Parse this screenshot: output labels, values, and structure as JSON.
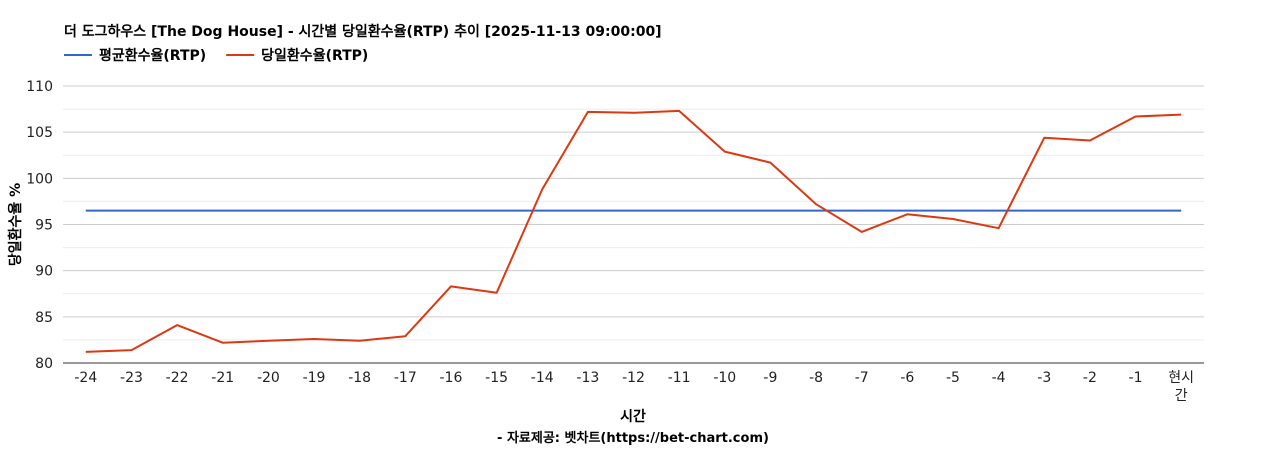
{
  "chart_data": {
    "type": "line",
    "title": "더 도그하우스 [The Dog House] - 시간별 당일환수율(RTP) 추이 [2025-11-13 09:00:00]",
    "xlabel": "시간",
    "ylabel": "당일환수율 %",
    "source": "- 자료제공: 벳차트(https://bet-chart.com)",
    "categories": [
      "-24",
      "-23",
      "-22",
      "-21",
      "-20",
      "-19",
      "-18",
      "-17",
      "-16",
      "-15",
      "-14",
      "-13",
      "-12",
      "-11",
      "-10",
      "-9",
      "-8",
      "-7",
      "-6",
      "-5",
      "-4",
      "-3",
      "-2",
      "-1",
      "현시간"
    ],
    "yticks": [
      80,
      85,
      90,
      95,
      100,
      105,
      110
    ],
    "ylim": [
      80,
      110
    ],
    "grid": true,
    "legend_position": "top-left",
    "series": [
      {
        "name": "평균환수율(RTP)",
        "color": "#3366cc",
        "values": [
          96.5,
          96.5,
          96.5,
          96.5,
          96.5,
          96.5,
          96.5,
          96.5,
          96.5,
          96.5,
          96.5,
          96.5,
          96.5,
          96.5,
          96.5,
          96.5,
          96.5,
          96.5,
          96.5,
          96.5,
          96.5,
          96.5,
          96.5,
          96.5,
          96.5
        ]
      },
      {
        "name": "당일환수율(RTP)",
        "color": "#dc3912",
        "values": [
          81.2,
          81.4,
          84.1,
          82.2,
          82.4,
          82.6,
          82.4,
          82.9,
          88.3,
          87.6,
          98.8,
          107.2,
          107.1,
          107.3,
          102.9,
          101.7,
          97.2,
          94.2,
          96.1,
          95.6,
          94.6,
          104.4,
          104.1,
          106.7,
          106.9
        ]
      }
    ]
  }
}
